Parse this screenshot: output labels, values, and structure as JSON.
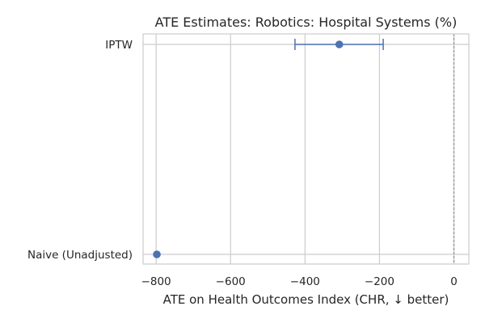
{
  "chart_data": {
    "type": "scatter",
    "title": "ATE Estimates: Robotics: Hospital Systems (%)",
    "xlabel": "ATE on Health Outcomes Index (CHR, ↓ better)",
    "ylabel": "",
    "categories": [
      "IPTW",
      "Naive (Unadjusted)"
    ],
    "series": [
      {
        "values": [
          -308,
          -798
        ],
        "ci_low": [
          -427,
          -798
        ],
        "ci_high": [
          -190,
          -798
        ]
      }
    ],
    "xlim": [
      -835,
      40
    ],
    "xticks": [
      -800,
      -600,
      -400,
      -200,
      0
    ],
    "xtick_labels": [
      "−800",
      "−600",
      "−400",
      "−200",
      "0"
    ],
    "reference_line": 0,
    "grid": true,
    "colors": {
      "point": "#4c72b0",
      "grid": "#cccccc",
      "reference": "#808080",
      "frame": "#cccccc"
    }
  }
}
